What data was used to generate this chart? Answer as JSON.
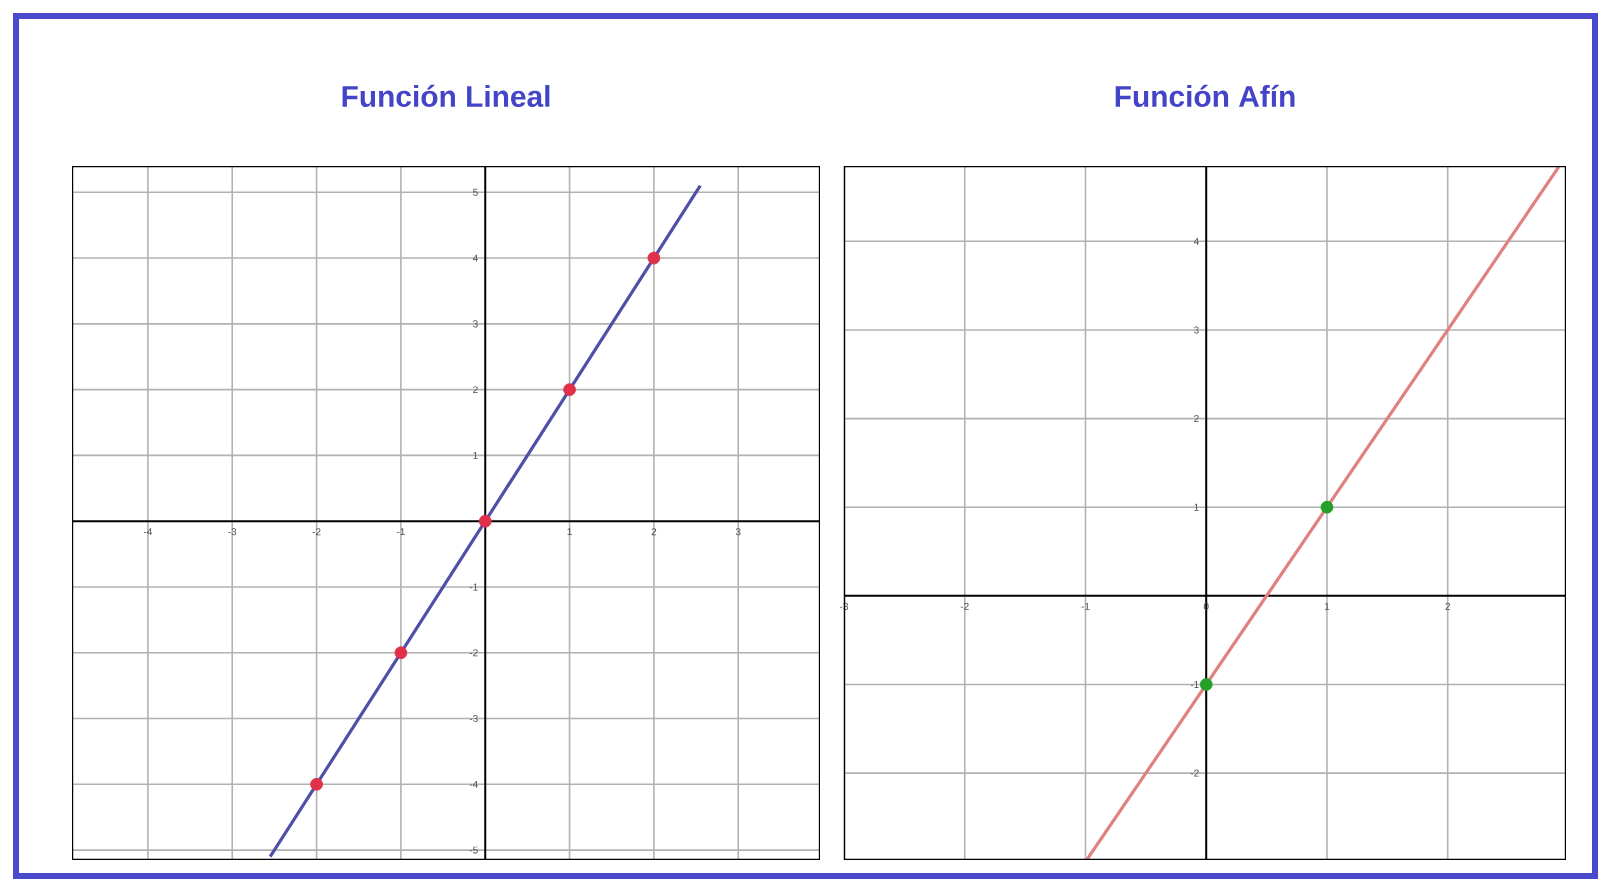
{
  "chart_data": [
    {
      "type": "line",
      "title": "Función Lineal",
      "xlim": [
        -4.9,
        3.97
      ],
      "ylim": [
        -5.15,
        5.4
      ],
      "xticks": [
        -4,
        -3,
        -2,
        -1,
        1,
        2,
        3
      ],
      "yticks": [
        -5,
        -4,
        -3,
        -2,
        -1,
        1,
        2,
        3,
        4,
        5
      ],
      "grid": true,
      "series": [
        {
          "type": "line",
          "color": "#4f4fa8",
          "x": [
            -2.55,
            2.55
          ],
          "values": [
            -5.1,
            5.1
          ]
        },
        {
          "type": "scatter",
          "color": "#e0304a",
          "x": [
            -2,
            -1,
            0,
            1,
            2
          ],
          "values": [
            -4,
            -2,
            0,
            2,
            4
          ]
        }
      ]
    },
    {
      "type": "line",
      "title": "Función Afín",
      "xlim": [
        -3.0,
        2.98
      ],
      "ylim": [
        -2.98,
        4.85
      ],
      "xticks": [
        -3,
        -2,
        -1,
        0,
        1,
        2
      ],
      "yticks": [
        -2,
        -1,
        1,
        2,
        3,
        4
      ],
      "grid": true,
      "series": [
        {
          "type": "line",
          "color": "#e08080",
          "x": [
            -0.99,
            2.92
          ],
          "values": [
            -2.98,
            4.84
          ]
        },
        {
          "type": "scatter",
          "color": "#22a02a",
          "x": [
            0,
            1
          ],
          "values": [
            -1,
            1
          ]
        }
      ]
    }
  ]
}
